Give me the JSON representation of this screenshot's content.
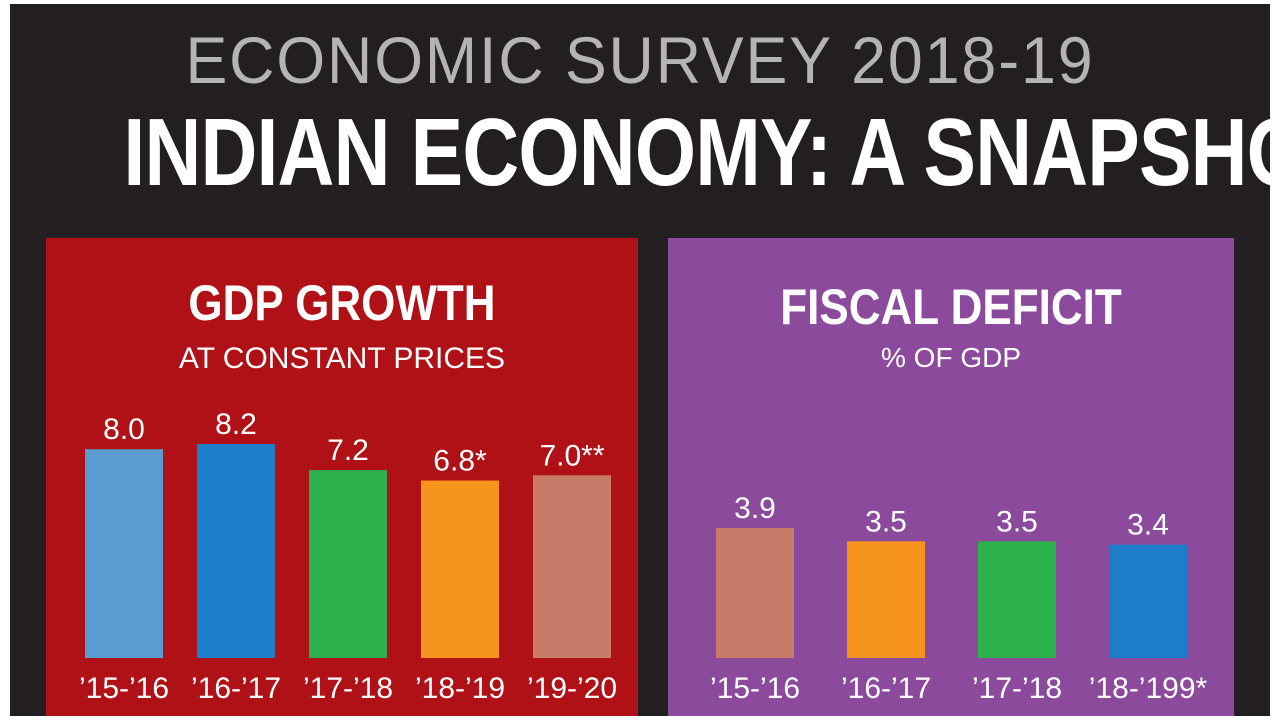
{
  "header": {
    "supertitle": "ECONOMIC SURVEY 2018-19",
    "title": "INDIAN ECONOMY: A SNAPSHOT"
  },
  "chart_data": [
    {
      "type": "bar",
      "title": "GDP GROWTH",
      "subtitle": "AT CONSTANT PRICES",
      "panel_color": "#b01116",
      "categories": [
        "’15-’16",
        "’16-’17",
        "’17-’18",
        "’18-’19",
        "’19-’20"
      ],
      "values": [
        8.0,
        8.2,
        7.2,
        6.8,
        7.0
      ],
      "value_labels": [
        "8.0",
        "8.2",
        "7.2",
        "6.8*",
        "7.0**"
      ],
      "bar_colors": [
        "#5a9bd0",
        "#1c7ec8",
        "#2bb24c",
        "#f7941d",
        "#c77b68"
      ],
      "ylim": [
        0,
        8.2
      ]
    },
    {
      "type": "bar",
      "title": "FISCAL DEFICIT",
      "subtitle": "% OF GDP",
      "panel_color": "#8c4a9c",
      "categories": [
        "’15-’16",
        "’16-’17",
        "’17-’18",
        "’18-’199*"
      ],
      "values": [
        3.9,
        3.5,
        3.5,
        3.4
      ],
      "value_labels": [
        "3.9",
        "3.5",
        "3.5",
        "3.4"
      ],
      "bar_colors": [
        "#c77b68",
        "#f7941d",
        "#2bb24c",
        "#1c7ec8"
      ],
      "ylim": [
        0,
        3.9
      ]
    }
  ]
}
